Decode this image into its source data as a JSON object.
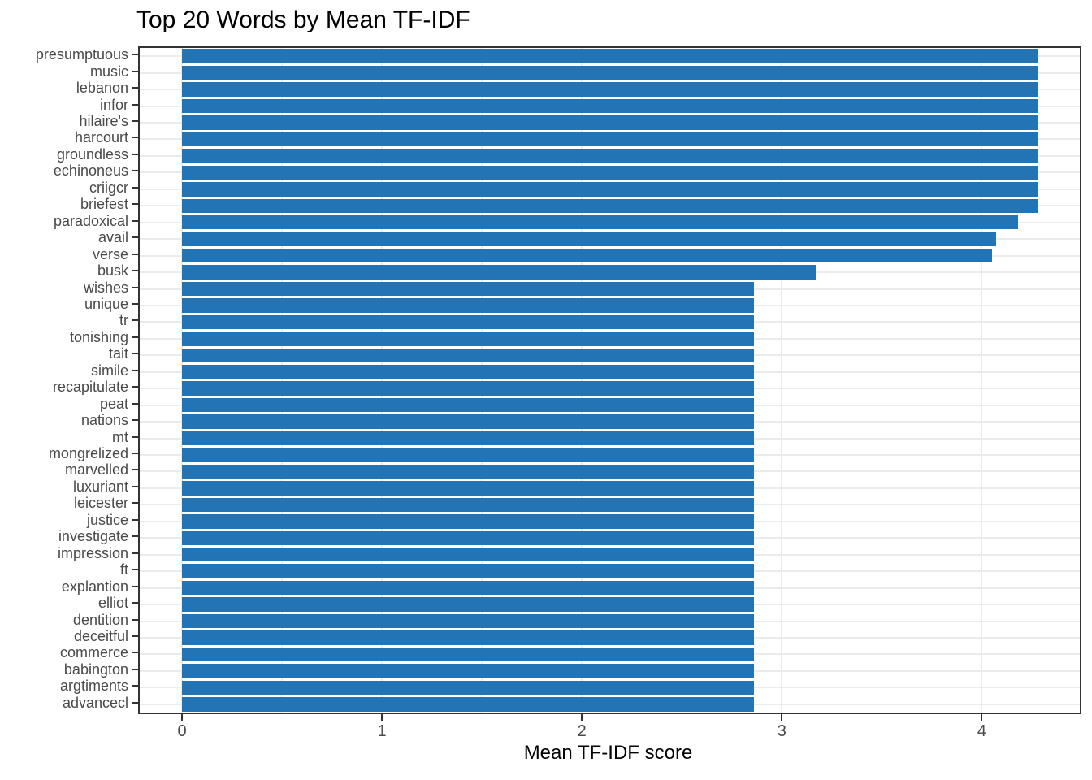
{
  "chart_data": {
    "type": "bar",
    "orientation": "horizontal",
    "title": "Top 20 Words by Mean TF-IDF",
    "xlabel": "Mean TF-IDF score",
    "ylabel": "",
    "x_ticks": [
      "0",
      "1",
      "2",
      "3",
      "4"
    ],
    "x_tick_values": [
      0,
      1,
      2,
      3,
      4
    ],
    "x_minor_tick_values": [
      0.5,
      1.5,
      2.5,
      3.5
    ],
    "xlim": [
      -0.21,
      4.5
    ],
    "grid": true,
    "legend_position": "none",
    "categories": [
      "presumptuous",
      "music",
      "lebanon",
      "infor",
      "hilaire's",
      "harcourt",
      "groundless",
      "echinoneus",
      "criigcr",
      "briefest",
      "paradoxical",
      "avail",
      "verse",
      "busk",
      "wishes",
      "unique",
      "tr",
      "tonishing",
      "tait",
      "simile",
      "recapitulate",
      "peat",
      "nations",
      "mt",
      "mongrelized",
      "marvelled",
      "luxuriant",
      "leicester",
      "justice",
      "investigate",
      "impression",
      "ft",
      "explantion",
      "elliot",
      "dentition",
      "deceitful",
      "commerce",
      "babington",
      "argtiments",
      "advancecl"
    ],
    "values": [
      4.28,
      4.28,
      4.28,
      4.28,
      4.28,
      4.28,
      4.28,
      4.28,
      4.28,
      4.28,
      4.18,
      4.07,
      4.05,
      3.17,
      2.86,
      2.86,
      2.86,
      2.86,
      2.86,
      2.86,
      2.86,
      2.86,
      2.86,
      2.86,
      2.86,
      2.86,
      2.86,
      2.86,
      2.86,
      2.86,
      2.86,
      2.86,
      2.86,
      2.86,
      2.86,
      2.86,
      2.86,
      2.86,
      2.86,
      2.86
    ]
  },
  "colors": {
    "bar": "#2274b4",
    "grid_major": "#ebebeb",
    "grid_minor": "#efefef",
    "panel_border": "#333333",
    "tick_mark": "#333333",
    "tick_text": "#4a4a4a",
    "title_text": "#000000"
  }
}
